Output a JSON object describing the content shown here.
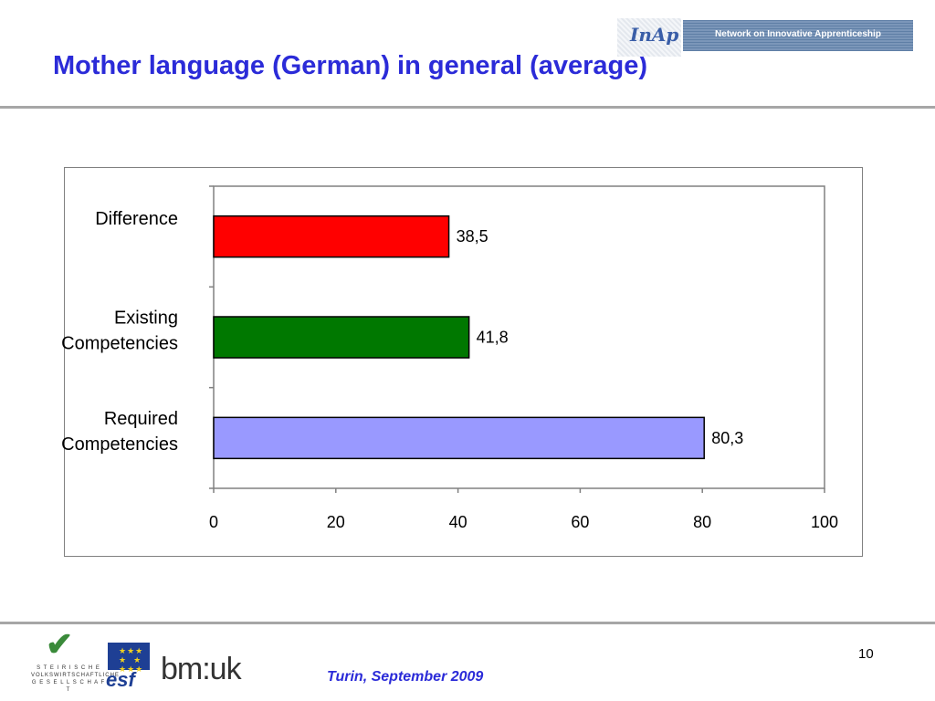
{
  "slide": {
    "title": "Mother language (German) in general  (average)",
    "page_number": "10",
    "footer_caption": "Turin, September 2009"
  },
  "banner": {
    "logo_text": "InAp",
    "text": "Network on Innovative Apprenticeship"
  },
  "logos": {
    "steiermark_text": [
      "S T E I R I S C H E",
      "VOLKSWIRTSCHAFTLICHE",
      "G E S E L L S C H A F T"
    ],
    "esf_text": "esf",
    "bmuk_text": "bm:uk"
  },
  "chart_data": {
    "type": "bar",
    "orientation": "horizontal",
    "categories": [
      "Difference",
      "Existing Competencies",
      "Required Competencies"
    ],
    "category_lines": [
      [
        "Difference"
      ],
      [
        "Existing",
        "Competencies"
      ],
      [
        "Required",
        "Competencies"
      ]
    ],
    "values": [
      38.5,
      41.8,
      80.3
    ],
    "value_labels": [
      "38,5",
      "41,8",
      "80,3"
    ],
    "colors": [
      "#ff0000",
      "#007800",
      "#9999ff"
    ],
    "xlim": [
      0,
      100
    ],
    "xticks": [
      0,
      20,
      40,
      60,
      80,
      100
    ],
    "grid": false,
    "title": "",
    "xlabel": "",
    "ylabel": ""
  }
}
